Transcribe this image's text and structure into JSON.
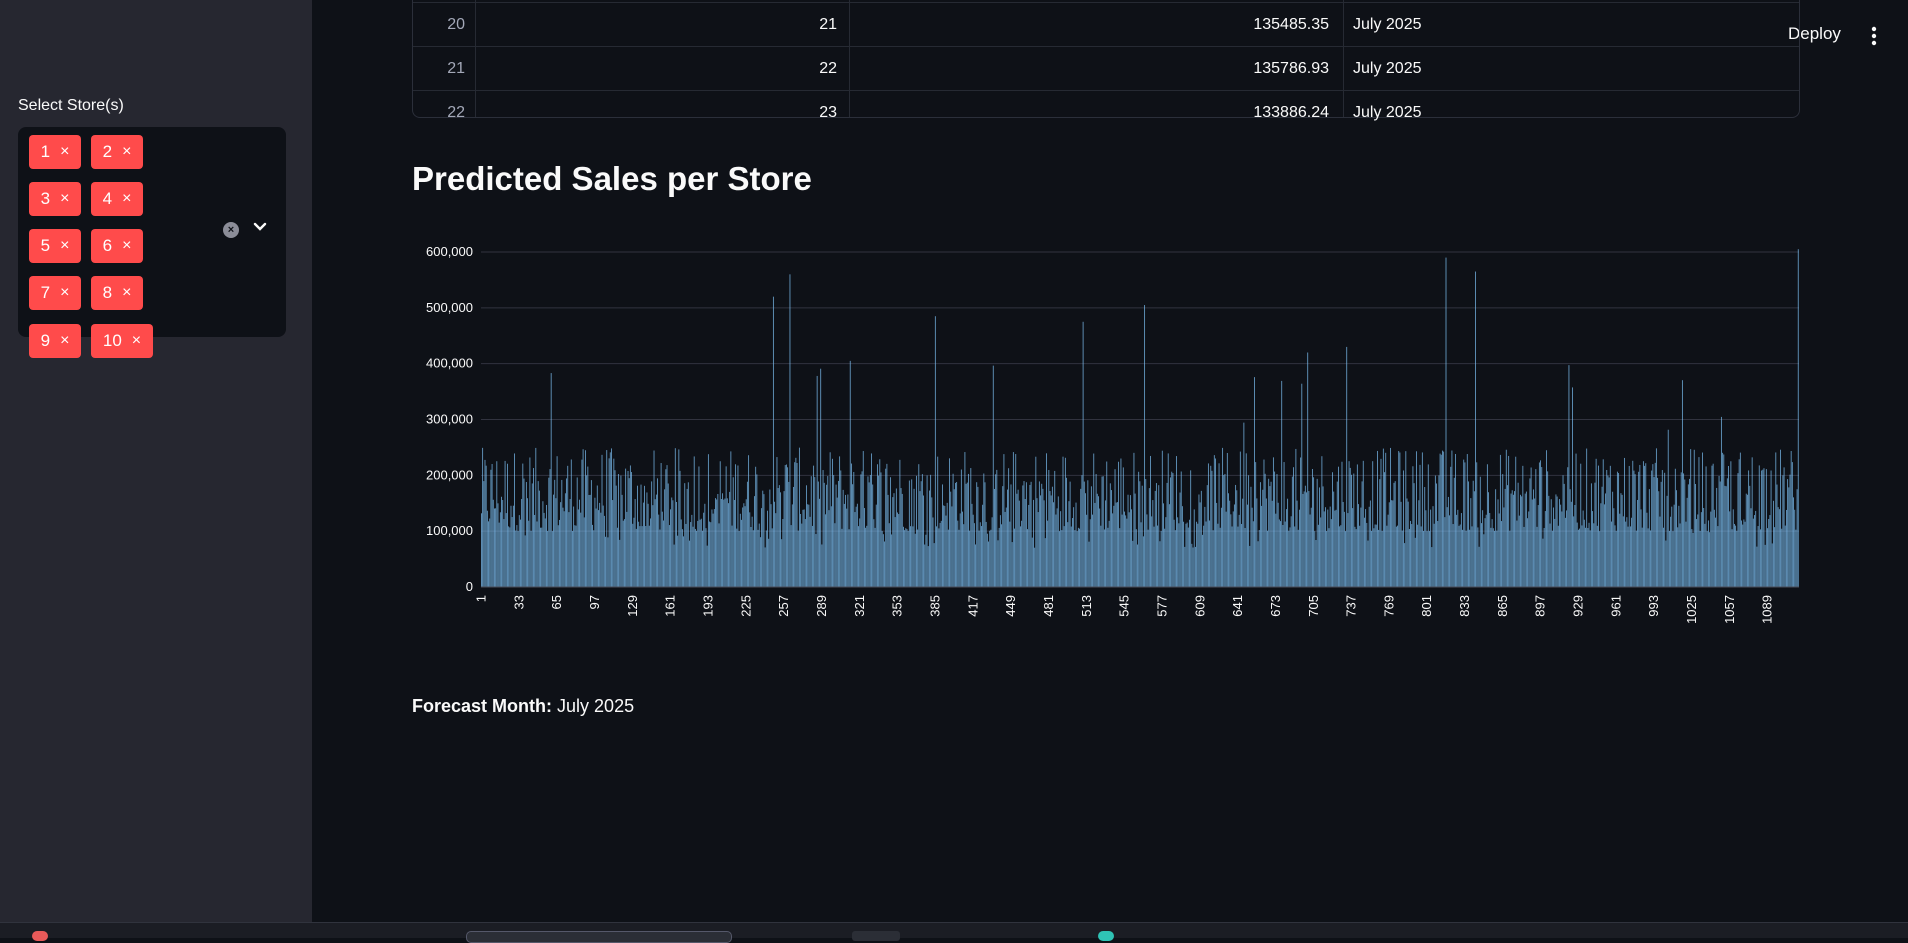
{
  "sidebar": {
    "label": "Select Store(s)",
    "chips": [
      {
        "value": "1"
      },
      {
        "value": "2"
      },
      {
        "value": "3"
      },
      {
        "value": "4"
      },
      {
        "value": "5"
      },
      {
        "value": "6"
      },
      {
        "value": "7"
      },
      {
        "value": "8"
      },
      {
        "value": "9"
      },
      {
        "value": "10"
      }
    ],
    "chip_remove_glyph": "×"
  },
  "header": {
    "deploy_label": "Deploy",
    "menu_icon": "vertical-ellipsis-icon"
  },
  "table": {
    "rows": [
      {
        "index": "20",
        "store": "21",
        "sales": "135485.35",
        "month": "July 2025"
      },
      {
        "index": "21",
        "store": "22",
        "sales": "135786.93",
        "month": "July 2025"
      },
      {
        "index": "22",
        "store": "23",
        "sales": "133886.24",
        "month": "July 2025"
      }
    ]
  },
  "chart_title": "Predicted Sales per Store",
  "chart_data": {
    "type": "bar",
    "title": "",
    "xlabel": "",
    "ylabel": "",
    "ylim": [
      0,
      600000
    ],
    "yticks": [
      "0",
      "100,000",
      "200,000",
      "300,000",
      "400,000",
      "500,000",
      "600,000"
    ],
    "x_tick_labels": [
      "1",
      "33",
      "65",
      "97",
      "129",
      "161",
      "193",
      "225",
      "257",
      "289",
      "321",
      "353",
      "385",
      "417",
      "449",
      "481",
      "513",
      "545",
      "577",
      "609",
      "641",
      "673",
      "705",
      "737",
      "769",
      "801",
      "833",
      "865",
      "897",
      "929",
      "961",
      "993",
      "1025",
      "1057",
      "1089"
    ],
    "store_range": [
      1,
      1115
    ],
    "bar_color": "#83c9ff",
    "typical_value_range": [
      100000,
      250000
    ],
    "notable_peaks": [
      {
        "store": 248,
        "value": 520000
      },
      {
        "store": 262,
        "value": 560000
      },
      {
        "store": 313,
        "value": 405000
      },
      {
        "store": 385,
        "value": 485000
      },
      {
        "store": 510,
        "value": 475000
      },
      {
        "store": 562,
        "value": 505000
      },
      {
        "store": 700,
        "value": 420000
      },
      {
        "store": 733,
        "value": 430000
      },
      {
        "store": 817,
        "value": 590000
      },
      {
        "store": 842,
        "value": 565000
      },
      {
        "store": 1115,
        "value": 605000
      }
    ]
  },
  "forecast": {
    "label": "Forecast Month:",
    "value": "July 2025"
  }
}
